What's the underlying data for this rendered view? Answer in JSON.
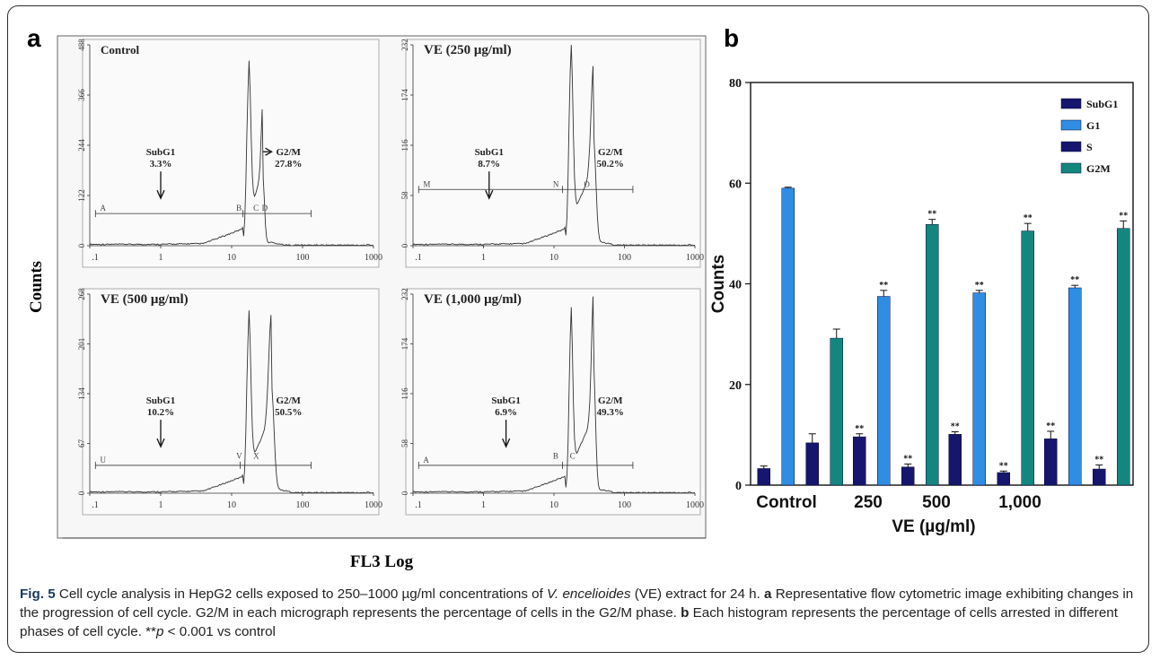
{
  "panel_a": {
    "label": "a",
    "y_axis_label": "Counts",
    "x_axis_label": "FL3 Log",
    "x_ticks": [
      "1",
      "1",
      "10",
      "100",
      "1000"
    ],
    "histograms": [
      {
        "title": "Control",
        "y_ticks": [
          "0",
          "122",
          "244",
          "366",
          "488"
        ],
        "subg1_label": "SubG1",
        "subg1_value": "3.3%",
        "g2m_label": "G2/M",
        "g2m_value": "27.8%",
        "markers": [
          "A",
          "B",
          "C",
          "D"
        ]
      },
      {
        "title": "VE (250 μg/ml)",
        "y_ticks": [
          "0",
          "58",
          "116",
          "174",
          "232"
        ],
        "subg1_label": "SubG1",
        "subg1_value": "8.7%",
        "g2m_label": "G2/M",
        "g2m_value": "50.2%",
        "markers": [
          "M",
          "N",
          "O"
        ]
      },
      {
        "title": "VE (500 μg/ml)",
        "y_ticks": [
          "0",
          "67",
          "134",
          "201",
          "268"
        ],
        "subg1_label": "SubG1",
        "subg1_value": "10.2%",
        "g2m_label": "G2/M",
        "g2m_value": "50.5%",
        "markers": [
          "U",
          "V",
          "X"
        ]
      },
      {
        "title": "VE (1,000 μg/ml)",
        "y_ticks": [
          "0",
          "58",
          "116",
          "174",
          "232"
        ],
        "subg1_label": "SubG1",
        "subg1_value": "6.9%",
        "g2m_label": "G2/M",
        "g2m_value": "49.3%",
        "markers": [
          "A",
          "B",
          "C"
        ]
      }
    ]
  },
  "chart_data": {
    "type": "bar",
    "panel_label": "b",
    "xlabel": "VE (µg/ml)",
    "ylabel": "Counts",
    "ylim": [
      0,
      80
    ],
    "y_ticks": [
      0,
      20,
      40,
      60,
      80
    ],
    "x_tick_labels": [
      "Control",
      "250",
      "500",
      "1,000"
    ],
    "groups": 4,
    "legend_position": "top-right",
    "significance_marker": "**",
    "series": [
      {
        "name": "SubG1",
        "color": "#16166e",
        "values": [
          3.3,
          9.6,
          10.1,
          9.2
        ],
        "errors": [
          0.5,
          0.6,
          0.5,
          1.5
        ],
        "significant": [
          false,
          true,
          true,
          true
        ]
      },
      {
        "name": "G1",
        "color": "#2f8de4",
        "values": [
          59,
          37.5,
          38.2,
          39.2
        ],
        "errors": [
          0.2,
          1.2,
          0.5,
          0.5
        ],
        "significant": [
          false,
          true,
          true,
          true
        ]
      },
      {
        "name": "S",
        "color": "#16166e",
        "values": [
          8.4,
          3.6,
          2.5,
          3.2
        ],
        "errors": [
          1.8,
          0.6,
          0.3,
          0.8
        ],
        "significant": [
          false,
          true,
          true,
          true
        ]
      },
      {
        "name": "G2M",
        "color": "#13877f",
        "values": [
          29.2,
          51.8,
          50.5,
          51.0
        ],
        "errors": [
          1.8,
          1.0,
          1.5,
          1.5
        ],
        "significant": [
          false,
          true,
          true,
          true
        ]
      }
    ]
  },
  "caption": {
    "fig": "Fig. 5",
    "text1": " Cell cycle analysis in HepG2 cells exposed to 250–1000 µg/ml concentrations of ",
    "species": "V. encelioides",
    "text2": " (VE) extract for 24 h. ",
    "a": "a",
    "text3": " Representative flow cytometric image exhibiting changes in the progression of cell cycle. G2/M in each micrograph represents the percentage of cells in the G2/M phase. ",
    "b": "b",
    "text4": " Each histogram represents the percentage of cells arrested in different phases of cell cycle. **",
    "p": "p",
    "text5": " < 0.001 vs control"
  }
}
